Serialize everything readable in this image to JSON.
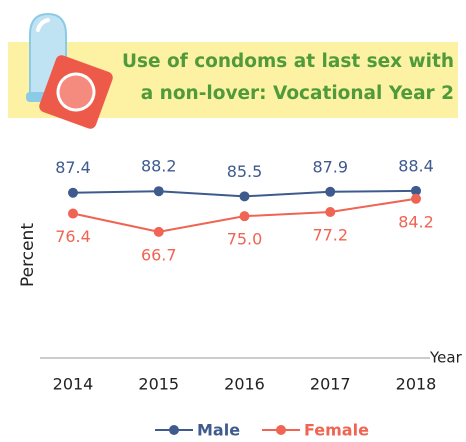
{
  "chart_data": {
    "type": "line",
    "title": "Use of condoms at last sex with a non-lover: Vocational Year 2",
    "xlabel": "Year",
    "ylabel": "Percent",
    "categories": [
      "2014",
      "2015",
      "2016",
      "2017",
      "2018"
    ],
    "series": [
      {
        "name": "Male",
        "color": "#3f5b8e",
        "values": [
          87.4,
          88.2,
          85.5,
          87.9,
          88.4
        ],
        "value_labels": [
          "87.4",
          "88.2",
          "85.5",
          "87.9",
          "88.4"
        ]
      },
      {
        "name": "Female",
        "color": "#ef6452",
        "values": [
          76.4,
          66.7,
          75.0,
          77.2,
          84.2
        ],
        "value_labels": [
          "76.4",
          "66.7",
          "75.0",
          "77.2",
          "84.2"
        ]
      }
    ],
    "ylim": [
      0,
      110
    ],
    "legend": "bottom"
  }
}
